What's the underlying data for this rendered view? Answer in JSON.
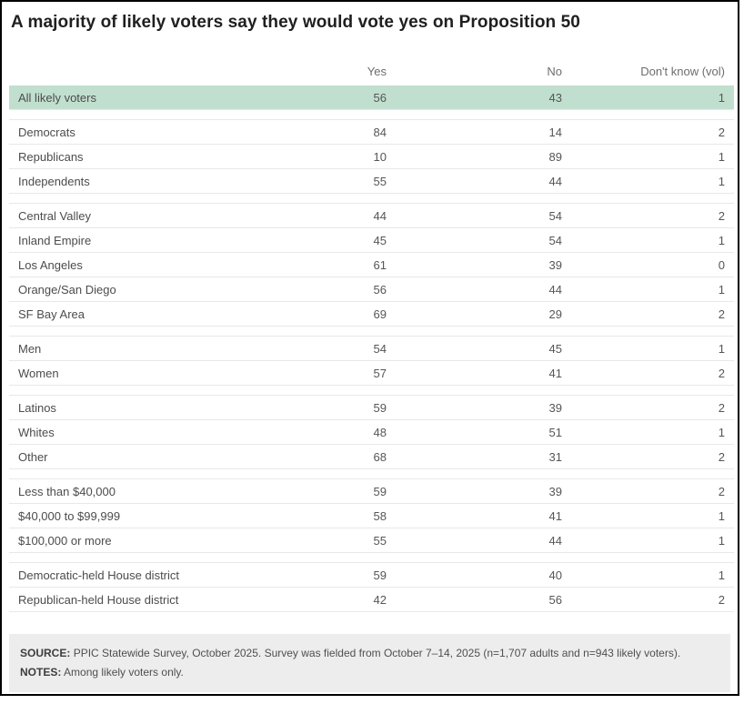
{
  "title": "A majority of likely voters say they would vote yes on Proposition 50",
  "chart_data": {
    "type": "table",
    "title": "A majority of likely voters say they would vote yes on Proposition 50",
    "columns": [
      "Yes",
      "No",
      "Don't know (vol)"
    ],
    "groups": [
      {
        "rows": [
          {
            "label": "All likely voters",
            "yes": 56,
            "no": 43,
            "dont_know": 1,
            "highlighted": true
          }
        ]
      },
      {
        "rows": [
          {
            "label": "Democrats",
            "yes": 84,
            "no": 14,
            "dont_know": 2
          },
          {
            "label": "Republicans",
            "yes": 10,
            "no": 89,
            "dont_know": 1
          },
          {
            "label": "Independents",
            "yes": 55,
            "no": 44,
            "dont_know": 1
          }
        ]
      },
      {
        "rows": [
          {
            "label": "Central Valley",
            "yes": 44,
            "no": 54,
            "dont_know": 2
          },
          {
            "label": "Inland Empire",
            "yes": 45,
            "no": 54,
            "dont_know": 1
          },
          {
            "label": "Los Angeles",
            "yes": 61,
            "no": 39,
            "dont_know": 0
          },
          {
            "label": "Orange/San Diego",
            "yes": 56,
            "no": 44,
            "dont_know": 1
          },
          {
            "label": "SF Bay Area",
            "yes": 69,
            "no": 29,
            "dont_know": 2
          }
        ]
      },
      {
        "rows": [
          {
            "label": "Men",
            "yes": 54,
            "no": 45,
            "dont_know": 1
          },
          {
            "label": "Women",
            "yes": 57,
            "no": 41,
            "dont_know": 2
          }
        ]
      },
      {
        "rows": [
          {
            "label": "Latinos",
            "yes": 59,
            "no": 39,
            "dont_know": 2
          },
          {
            "label": "Whites",
            "yes": 48,
            "no": 51,
            "dont_know": 1
          },
          {
            "label": "Other",
            "yes": 68,
            "no": 31,
            "dont_know": 2
          }
        ]
      },
      {
        "rows": [
          {
            "label": "Less than $40,000",
            "yes": 59,
            "no": 39,
            "dont_know": 2
          },
          {
            "label": "$40,000 to $99,999",
            "yes": 58,
            "no": 41,
            "dont_know": 1
          },
          {
            "label": "$100,000 or more",
            "yes": 55,
            "no": 44,
            "dont_know": 1
          }
        ]
      },
      {
        "rows": [
          {
            "label": "Democratic-held House district",
            "yes": 59,
            "no": 40,
            "dont_know": 1
          },
          {
            "label": "Republican-held House district",
            "yes": 42,
            "no": 56,
            "dont_know": 2
          }
        ]
      }
    ],
    "layout": {
      "highlight_row_color": "#c1dfce",
      "row_divider_color": "#e8e8e8",
      "numeric_alignment": "right"
    }
  },
  "footer": {
    "source_label": "SOURCE:",
    "source_text": "PPIC Statewide Survey, October 2025. Survey was fielded from October 7–14, 2025 (n=1,707 adults and n=943 likely voters).",
    "notes_label": "NOTES:",
    "notes_text": "Among likely voters only."
  },
  "colors": {
    "highlight_row": "#c1dfce",
    "footer_background": "#ededed",
    "row_divider": "#e8e8e8",
    "card_border": "#000000",
    "title_text": "#1f1f1f"
  }
}
